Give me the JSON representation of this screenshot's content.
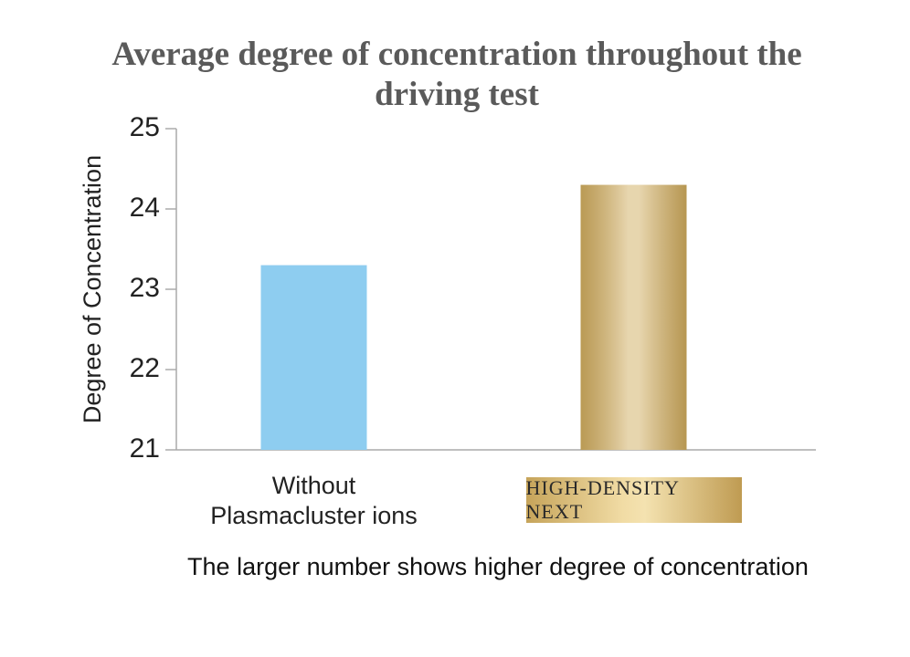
{
  "chart_data": {
    "type": "bar",
    "title": "Average degree of concentration throughout the driving test",
    "ylabel": "Degree of Concentration",
    "categories": [
      "Without Plasmacluster ions",
      "HIGH-DENSITY NEXT"
    ],
    "values": [
      23.3,
      24.3
    ],
    "colors": [
      "#8ecdf0",
      "#d4b46c"
    ],
    "ylim": [
      21,
      25
    ],
    "yticks": [
      21,
      22,
      23,
      24,
      25
    ],
    "note": "The larger number shows higher degree of concentration"
  }
}
